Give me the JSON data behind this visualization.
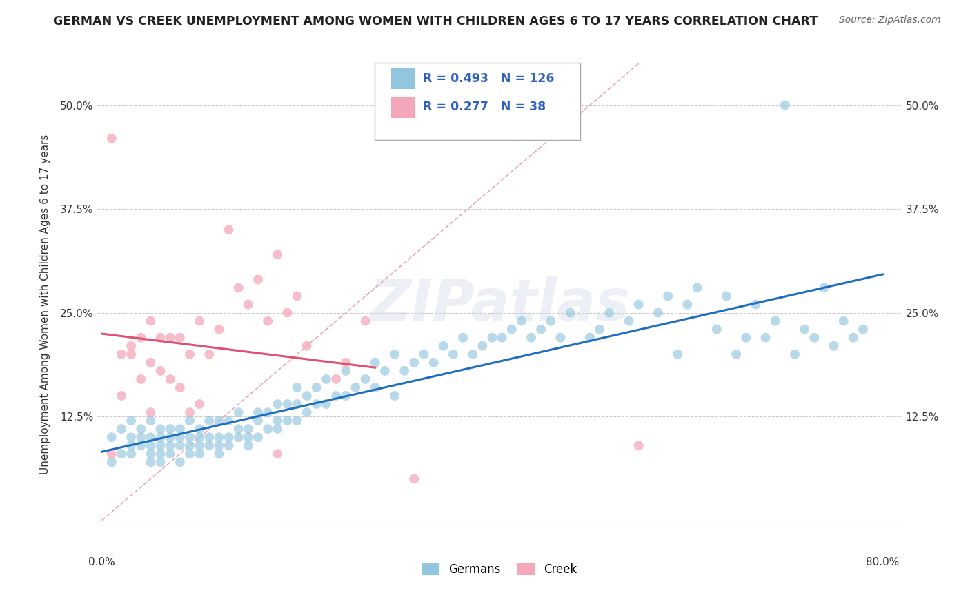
{
  "title": "GERMAN VS CREEK UNEMPLOYMENT AMONG WOMEN WITH CHILDREN AGES 6 TO 17 YEARS CORRELATION CHART",
  "source": "Source: ZipAtlas.com",
  "ylabel": "Unemployment Among Women with Children Ages 6 to 17 years",
  "xlim": [
    -0.005,
    0.82
  ],
  "ylim": [
    -0.04,
    0.56
  ],
  "xtick_positions": [
    0.0,
    0.1,
    0.2,
    0.3,
    0.4,
    0.5,
    0.6,
    0.7,
    0.8
  ],
  "xticklabels": [
    "0.0%",
    "",
    "",
    "",
    "",
    "",
    "",
    "",
    "80.0%"
  ],
  "ytick_positions": [
    0.0,
    0.125,
    0.25,
    0.375,
    0.5
  ],
  "yticklabels": [
    "",
    "12.5%",
    "25.0%",
    "37.5%",
    "50.0%"
  ],
  "german_color": "#92c5de",
  "creek_color": "#f4a7b9",
  "german_line_color": "#1f6dbf",
  "creek_line_color": "#e05070",
  "diagonal_color": "#e08090",
  "background_color": "#ffffff",
  "grid_color": "#cccccc",
  "legend_text_color": "#3060c0",
  "watermark": "ZIPatlas",
  "german_R": 0.493,
  "german_N": 126,
  "creek_R": 0.277,
  "creek_N": 38,
  "german_x": [
    0.01,
    0.01,
    0.02,
    0.02,
    0.03,
    0.03,
    0.03,
    0.03,
    0.04,
    0.04,
    0.04,
    0.05,
    0.05,
    0.05,
    0.05,
    0.05,
    0.06,
    0.06,
    0.06,
    0.06,
    0.06,
    0.07,
    0.07,
    0.07,
    0.07,
    0.08,
    0.08,
    0.08,
    0.08,
    0.09,
    0.09,
    0.09,
    0.09,
    0.1,
    0.1,
    0.1,
    0.1,
    0.11,
    0.11,
    0.11,
    0.12,
    0.12,
    0.12,
    0.12,
    0.13,
    0.13,
    0.13,
    0.14,
    0.14,
    0.14,
    0.15,
    0.15,
    0.15,
    0.16,
    0.16,
    0.16,
    0.17,
    0.17,
    0.18,
    0.18,
    0.18,
    0.19,
    0.19,
    0.2,
    0.2,
    0.2,
    0.21,
    0.21,
    0.22,
    0.22,
    0.23,
    0.23,
    0.24,
    0.25,
    0.25,
    0.26,
    0.27,
    0.28,
    0.28,
    0.29,
    0.3,
    0.3,
    0.31,
    0.32,
    0.33,
    0.34,
    0.35,
    0.36,
    0.37,
    0.38,
    0.39,
    0.4,
    0.41,
    0.42,
    0.43,
    0.44,
    0.45,
    0.46,
    0.47,
    0.48,
    0.5,
    0.51,
    0.52,
    0.54,
    0.55,
    0.57,
    0.58,
    0.59,
    0.6,
    0.61,
    0.63,
    0.64,
    0.65,
    0.66,
    0.67,
    0.68,
    0.69,
    0.7,
    0.71,
    0.72,
    0.73,
    0.74,
    0.75,
    0.76,
    0.77,
    0.78
  ],
  "german_y": [
    0.07,
    0.1,
    0.08,
    0.11,
    0.08,
    0.09,
    0.1,
    0.12,
    0.09,
    0.1,
    0.11,
    0.07,
    0.08,
    0.09,
    0.1,
    0.12,
    0.07,
    0.08,
    0.09,
    0.1,
    0.11,
    0.08,
    0.09,
    0.1,
    0.11,
    0.07,
    0.09,
    0.1,
    0.11,
    0.08,
    0.09,
    0.1,
    0.12,
    0.08,
    0.09,
    0.1,
    0.11,
    0.09,
    0.1,
    0.12,
    0.08,
    0.09,
    0.1,
    0.12,
    0.09,
    0.1,
    0.12,
    0.1,
    0.11,
    0.13,
    0.09,
    0.1,
    0.11,
    0.1,
    0.12,
    0.13,
    0.11,
    0.13,
    0.11,
    0.12,
    0.14,
    0.12,
    0.14,
    0.12,
    0.14,
    0.16,
    0.13,
    0.15,
    0.14,
    0.16,
    0.14,
    0.17,
    0.15,
    0.15,
    0.18,
    0.16,
    0.17,
    0.16,
    0.19,
    0.18,
    0.15,
    0.2,
    0.18,
    0.19,
    0.2,
    0.19,
    0.21,
    0.2,
    0.22,
    0.2,
    0.21,
    0.22,
    0.22,
    0.23,
    0.24,
    0.22,
    0.23,
    0.24,
    0.22,
    0.25,
    0.22,
    0.23,
    0.25,
    0.24,
    0.26,
    0.25,
    0.27,
    0.2,
    0.26,
    0.28,
    0.23,
    0.27,
    0.2,
    0.22,
    0.26,
    0.22,
    0.24,
    0.5,
    0.2,
    0.23,
    0.22,
    0.28,
    0.21,
    0.24,
    0.22,
    0.23
  ],
  "creek_x": [
    0.01,
    0.01,
    0.02,
    0.02,
    0.03,
    0.03,
    0.04,
    0.04,
    0.05,
    0.05,
    0.05,
    0.06,
    0.06,
    0.07,
    0.07,
    0.08,
    0.08,
    0.09,
    0.09,
    0.1,
    0.1,
    0.11,
    0.12,
    0.13,
    0.14,
    0.15,
    0.16,
    0.17,
    0.18,
    0.18,
    0.19,
    0.2,
    0.21,
    0.24,
    0.25,
    0.27,
    0.32,
    0.55
  ],
  "creek_y": [
    0.46,
    0.08,
    0.15,
    0.2,
    0.2,
    0.21,
    0.17,
    0.22,
    0.13,
    0.19,
    0.24,
    0.18,
    0.22,
    0.17,
    0.22,
    0.16,
    0.22,
    0.13,
    0.2,
    0.14,
    0.24,
    0.2,
    0.23,
    0.35,
    0.28,
    0.26,
    0.29,
    0.24,
    0.32,
    0.08,
    0.25,
    0.27,
    0.21,
    0.17,
    0.19,
    0.24,
    0.05,
    0.09
  ]
}
